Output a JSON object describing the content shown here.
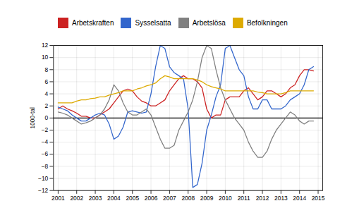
{
  "chart_data": {
    "type": "line",
    "ylabel": "1000-tal",
    "x": [
      2001,
      2001.25,
      2001.5,
      2001.75,
      2002,
      2002.25,
      2002.5,
      2002.75,
      2003,
      2003.25,
      2003.5,
      2003.75,
      2004,
      2004.25,
      2004.5,
      2004.75,
      2005,
      2005.25,
      2005.5,
      2005.75,
      2006,
      2006.25,
      2006.5,
      2006.75,
      2007,
      2007.25,
      2007.5,
      2007.75,
      2008,
      2008.25,
      2008.5,
      2008.75,
      2009,
      2009.25,
      2009.5,
      2009.75,
      2010,
      2010.25,
      2010.5,
      2010.75,
      2011,
      2011.25,
      2011.5,
      2011.75,
      2012,
      2012.25,
      2012.5,
      2012.75,
      2013,
      2013.25,
      2013.5,
      2013.75,
      2014,
      2014.25,
      2014.5,
      2014.75
    ],
    "series": [
      {
        "name": "Arbetskraften",
        "color": "#cc2222",
        "values": [
          1.5,
          2.0,
          1.5,
          1.2,
          0.8,
          0.3,
          0.3,
          0.0,
          0.0,
          0.5,
          1.0,
          1.5,
          2.5,
          3.5,
          4.5,
          4.8,
          4.5,
          3.5,
          2.8,
          2.5,
          2.0,
          2.0,
          2.5,
          3.0,
          4.5,
          5.5,
          6.5,
          7.0,
          6.5,
          6.5,
          6.0,
          5.0,
          1.5,
          0.0,
          0.5,
          0.5,
          3.0,
          3.5,
          3.5,
          3.5,
          4.5,
          5.0,
          4.0,
          3.0,
          3.5,
          4.5,
          4.5,
          4.0,
          3.5,
          4.0,
          5.0,
          5.5,
          7.0,
          8.0,
          8.0,
          7.8
        ]
      },
      {
        "name": "Sysselsatta",
        "color": "#3366cc",
        "values": [
          1.8,
          1.5,
          1.2,
          0.5,
          0.0,
          -0.5,
          -0.5,
          0.0,
          0.5,
          0.8,
          0.5,
          -1.0,
          -3.5,
          -3.0,
          -1.5,
          1.0,
          1.2,
          1.0,
          0.8,
          1.0,
          4.0,
          8.5,
          12.0,
          11.5,
          8.5,
          7.5,
          7.0,
          6.5,
          1.5,
          -11.5,
          -11.0,
          -7.5,
          -2.0,
          0.5,
          3.5,
          5.5,
          11.5,
          12.0,
          10.0,
          8.0,
          7.0,
          3.5,
          1.5,
          1.5,
          3.0,
          3.0,
          1.5,
          1.5,
          1.5,
          2.0,
          3.0,
          3.5,
          4.0,
          5.5,
          8.0,
          8.5
        ]
      },
      {
        "name": "Arbetslösa",
        "color": "#808080",
        "values": [
          1.0,
          0.8,
          0.5,
          0.0,
          -0.5,
          -1.0,
          -0.8,
          -0.5,
          0.0,
          0.5,
          1.5,
          3.0,
          5.5,
          4.5,
          2.5,
          1.0,
          0.5,
          0.5,
          1.0,
          1.5,
          0.5,
          -1.5,
          -3.5,
          -5.0,
          -5.0,
          -4.5,
          -2.0,
          -0.5,
          1.0,
          3.0,
          6.0,
          10.0,
          12.0,
          11.5,
          8.0,
          5.0,
          3.0,
          1.5,
          0.0,
          -1.0,
          -2.0,
          -4.0,
          -5.5,
          -6.5,
          -6.5,
          -5.5,
          -3.5,
          -2.0,
          -1.0,
          0.0,
          1.0,
          0.5,
          -0.5,
          -1.0,
          -0.5,
          -0.5
        ]
      },
      {
        "name": "Befolkningen",
        "color": "#ddaa00",
        "values": [
          2.5,
          2.5,
          2.5,
          2.5,
          2.8,
          3.0,
          3.0,
          3.2,
          3.3,
          3.5,
          3.5,
          3.8,
          4.0,
          4.2,
          4.5,
          4.5,
          4.5,
          4.8,
          5.0,
          5.3,
          5.5,
          5.8,
          6.5,
          7.0,
          6.8,
          6.5,
          6.5,
          6.5,
          6.5,
          6.5,
          6.3,
          6.0,
          5.5,
          5.2,
          5.0,
          4.8,
          4.5,
          4.5,
          4.5,
          4.5,
          4.5,
          4.5,
          4.5,
          4.3,
          4.2,
          4.0,
          4.0,
          4.0,
          4.0,
          4.2,
          4.5,
          4.5,
          4.5,
          4.5,
          4.5,
          4.5
        ]
      }
    ],
    "xlim": [
      2000.75,
      2015.25
    ],
    "xticks": [
      2001,
      2002,
      2003,
      2004,
      2005,
      2006,
      2007,
      2008,
      2009,
      2010,
      2011,
      2012,
      2013,
      2014,
      2015
    ],
    "ylim": [
      -12,
      12
    ],
    "yticks": [
      -12,
      -10,
      -8,
      -6,
      -4,
      -2,
      0,
      2,
      4,
      6,
      8,
      10,
      12
    ],
    "grid": true,
    "legend": "upper left"
  }
}
